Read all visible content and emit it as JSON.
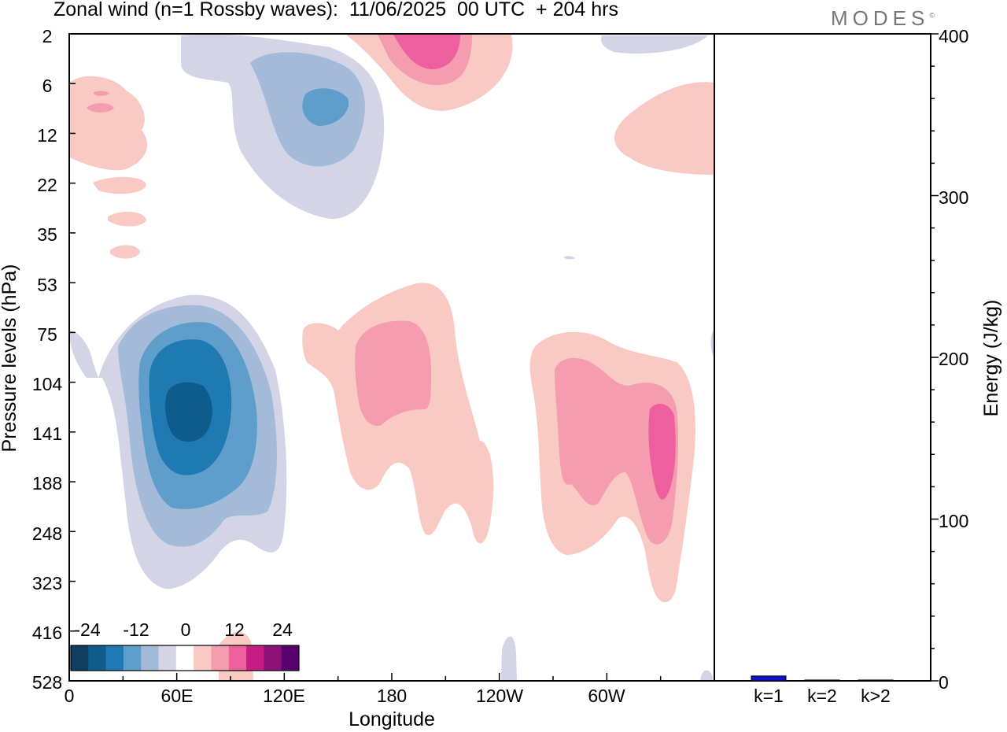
{
  "title": "Zonal wind (n=1 Rossby waves):  11/06/2025  00 UTC  + 204 hrs",
  "brand": "MODES",
  "brand_mark": "©",
  "colors": {
    "neg": [
      "#0f3e60",
      "#0e5c8c",
      "#1f7ab3",
      "#5f9ecb",
      "#a4bad9",
      "#d3d5e6"
    ],
    "pos": [
      "#f9c9c3",
      "#f69cb1",
      "#ee5f9d",
      "#c81e83",
      "#8d1277",
      "#58006b"
    ],
    "zero": "#ffffff",
    "energy_bar": "#1010c8"
  },
  "chart_data": [
    {
      "type": "heatmap",
      "title": "Zonal wind (n=1 Rossby waves):  11/06/2025  00 UTC  + 204 hrs",
      "xlabel": "Longitude",
      "ylabel": "Pressure levels (hPa)",
      "x_ticks": [
        "0",
        "60E",
        "120E",
        "180",
        "120W",
        "60W"
      ],
      "y_ticks": [
        "2",
        "6",
        "12",
        "22",
        "35",
        "53",
        "75",
        "104",
        "141",
        "188",
        "248",
        "323",
        "416",
        "528"
      ],
      "colorbar": {
        "labels": [
          "-24",
          "-12",
          "0",
          "12",
          "24"
        ],
        "levels": [
          -30,
          -25,
          -20,
          -15,
          -10,
          -5,
          5,
          10,
          15,
          20,
          25,
          30
        ]
      },
      "features": [
        {
          "sign": "negative",
          "peak": -25,
          "lon": 70,
          "level": 141
        },
        {
          "sign": "negative",
          "peak": -10,
          "lon": 140,
          "level": 10
        },
        {
          "sign": "positive",
          "peak": 15,
          "lon": 190,
          "level": 3
        },
        {
          "sign": "positive",
          "peak": 10,
          "lon": 170,
          "level": 104
        },
        {
          "sign": "positive",
          "peak": 15,
          "lon": 322,
          "level": 141
        },
        {
          "sign": "positive",
          "peak": 5,
          "lon": 10,
          "level": 10
        }
      ]
    },
    {
      "type": "bar",
      "ylabel": "Energy (J/kg)",
      "categories": [
        "k=1",
        "k=2",
        "k>2"
      ],
      "values": [
        3,
        0.5,
        0.5
      ],
      "ylim": [
        0,
        400
      ],
      "y_ticks": [
        "0",
        "100",
        "200",
        "300",
        "400"
      ]
    }
  ]
}
